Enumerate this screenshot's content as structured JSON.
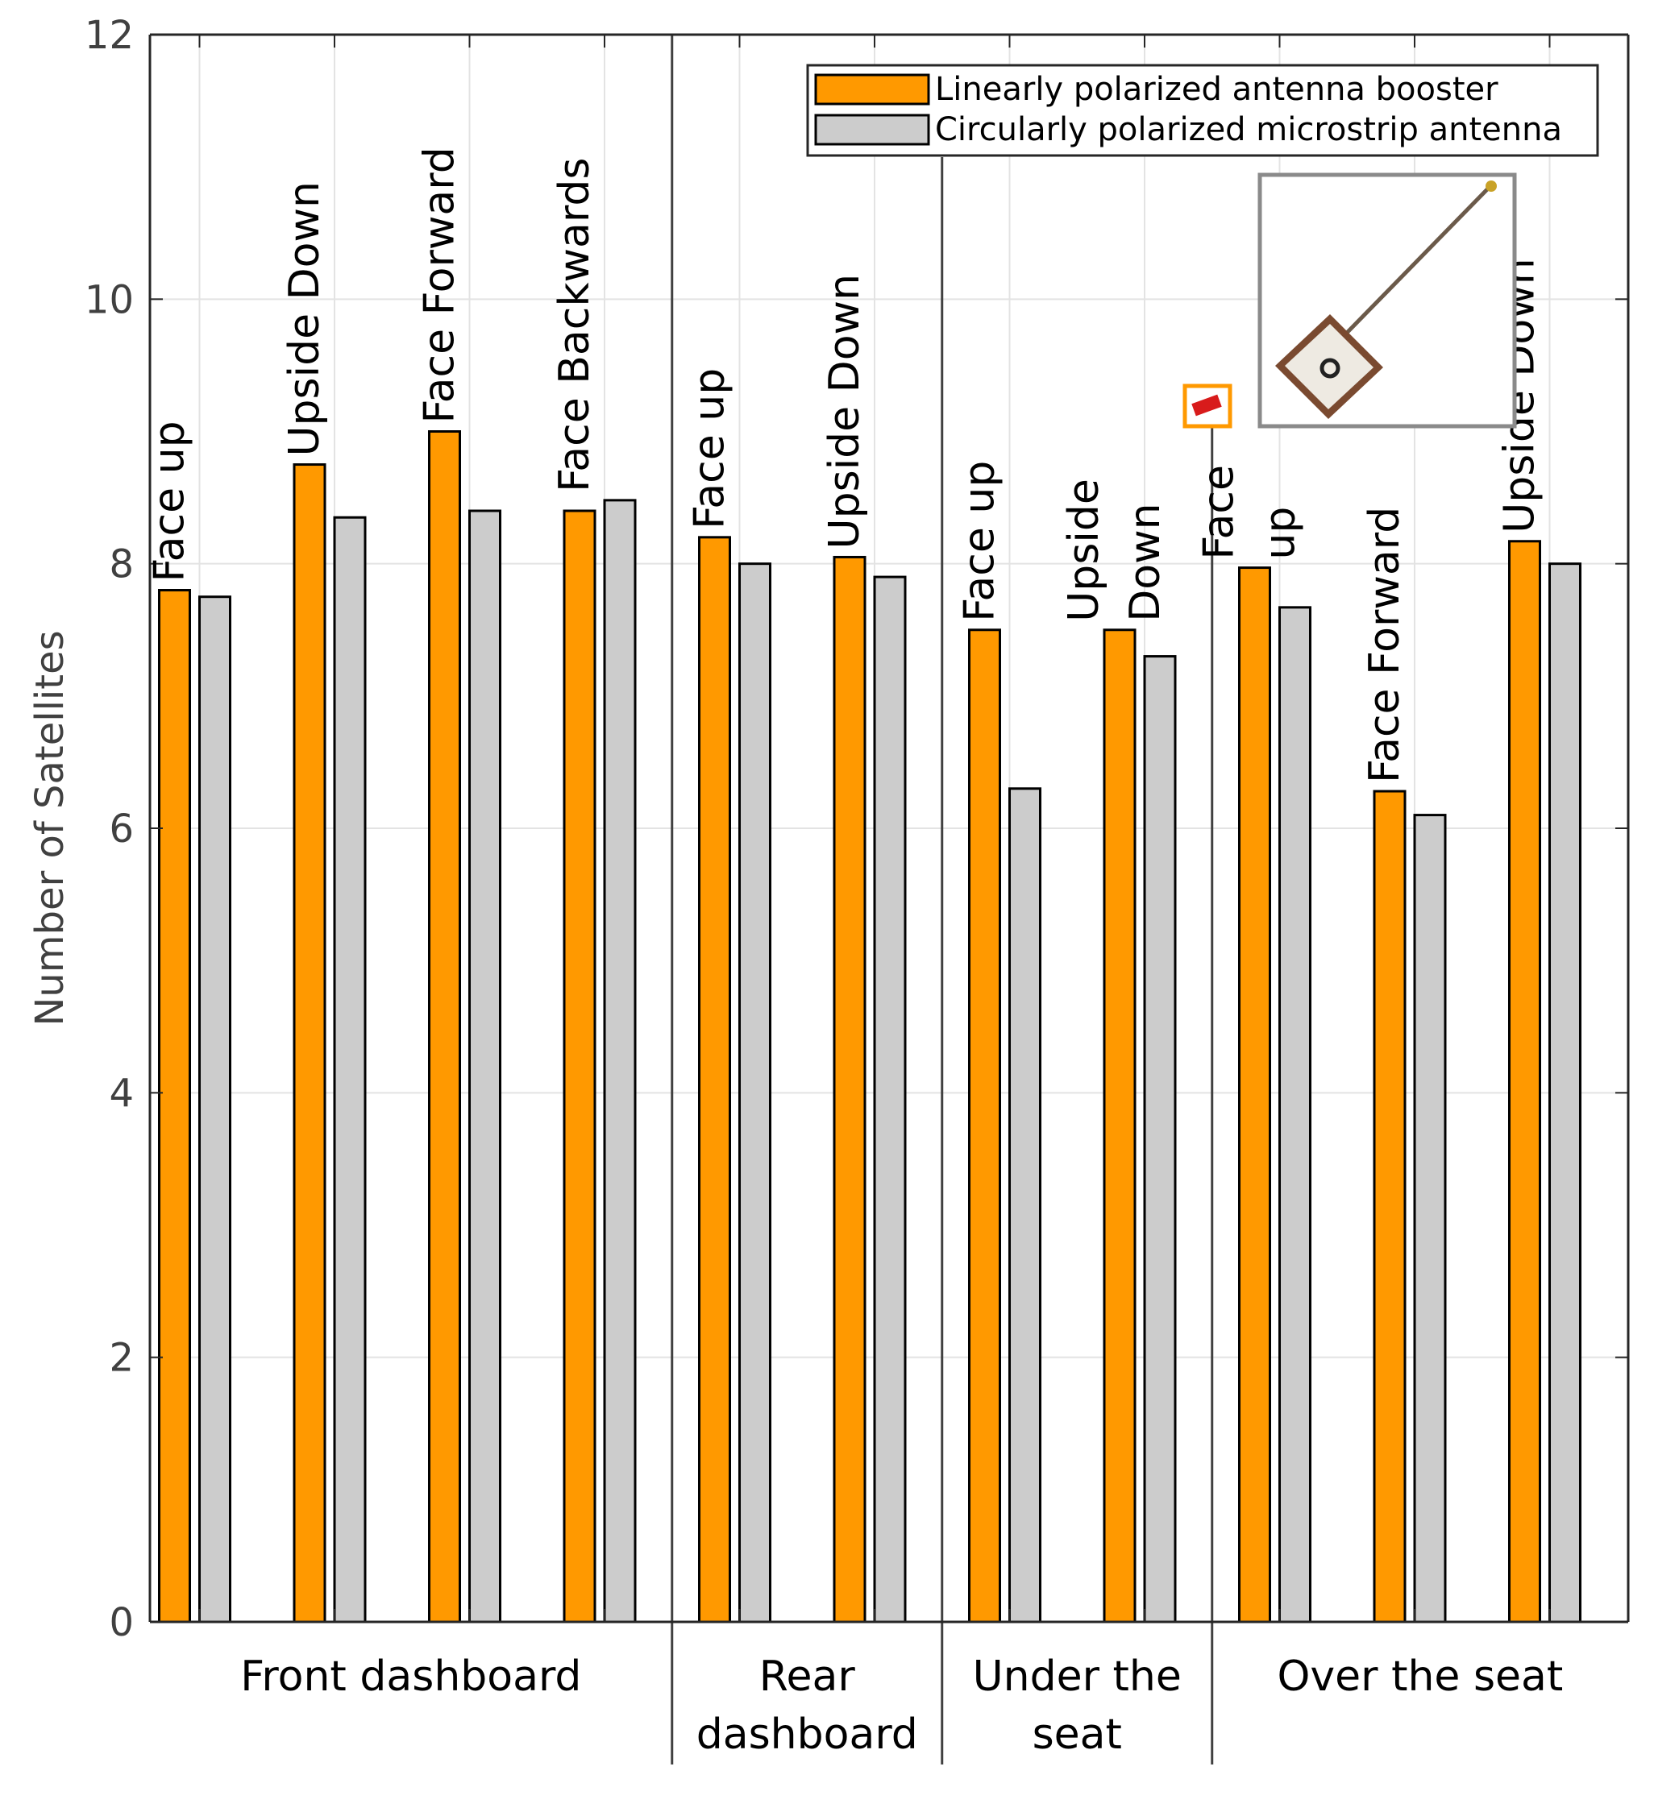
{
  "chart_data": {
    "type": "bar",
    "title": "",
    "xlabel": "",
    "ylabel": "Number of Satellites",
    "ylim": [
      0,
      12
    ],
    "yticks": [
      0,
      2,
      4,
      6,
      8,
      10,
      12
    ],
    "grid": true,
    "legend_position": "top-right",
    "series": [
      {
        "name": "Linearly polarized antenna booster",
        "color": "#ff9900",
        "values": [
          7.8,
          8.75,
          9.0,
          8.4,
          8.2,
          8.05,
          7.5,
          7.5,
          7.97,
          6.28,
          8.17
        ]
      },
      {
        "name": "Circularly polarized microstrip antenna",
        "color": "#cccccc",
        "values": [
          7.75,
          8.35,
          8.4,
          8.48,
          8.0,
          7.9,
          6.3,
          7.3,
          7.67,
          6.1,
          8.0
        ]
      }
    ],
    "bars": [
      {
        "label_lines": [
          "Face up"
        ]
      },
      {
        "label_lines": [
          "Upside Down"
        ]
      },
      {
        "label_lines": [
          "Face Forward"
        ]
      },
      {
        "label_lines": [
          "Face Backwards"
        ]
      },
      {
        "label_lines": [
          "Face up"
        ]
      },
      {
        "label_lines": [
          "Upside Down"
        ]
      },
      {
        "label_lines": [
          "Face up"
        ]
      },
      {
        "label_lines": [
          "Upside",
          "Down"
        ]
      },
      {
        "label_lines": [
          "Face",
          "up"
        ]
      },
      {
        "label_lines": [
          "Face Forward"
        ]
      },
      {
        "label_lines": [
          "Upside Down"
        ]
      }
    ],
    "groups": [
      {
        "label_lines": [
          "Front dashboard"
        ],
        "count": 4
      },
      {
        "label_lines": [
          "Rear",
          "dashboard"
        ],
        "count": 2
      },
      {
        "label_lines": [
          "Under the",
          "seat"
        ],
        "count": 2
      },
      {
        "label_lines": [
          "Over the seat"
        ],
        "count": 3
      }
    ],
    "inset_image": "chip-antenna-and-patch-antenna-photo"
  }
}
